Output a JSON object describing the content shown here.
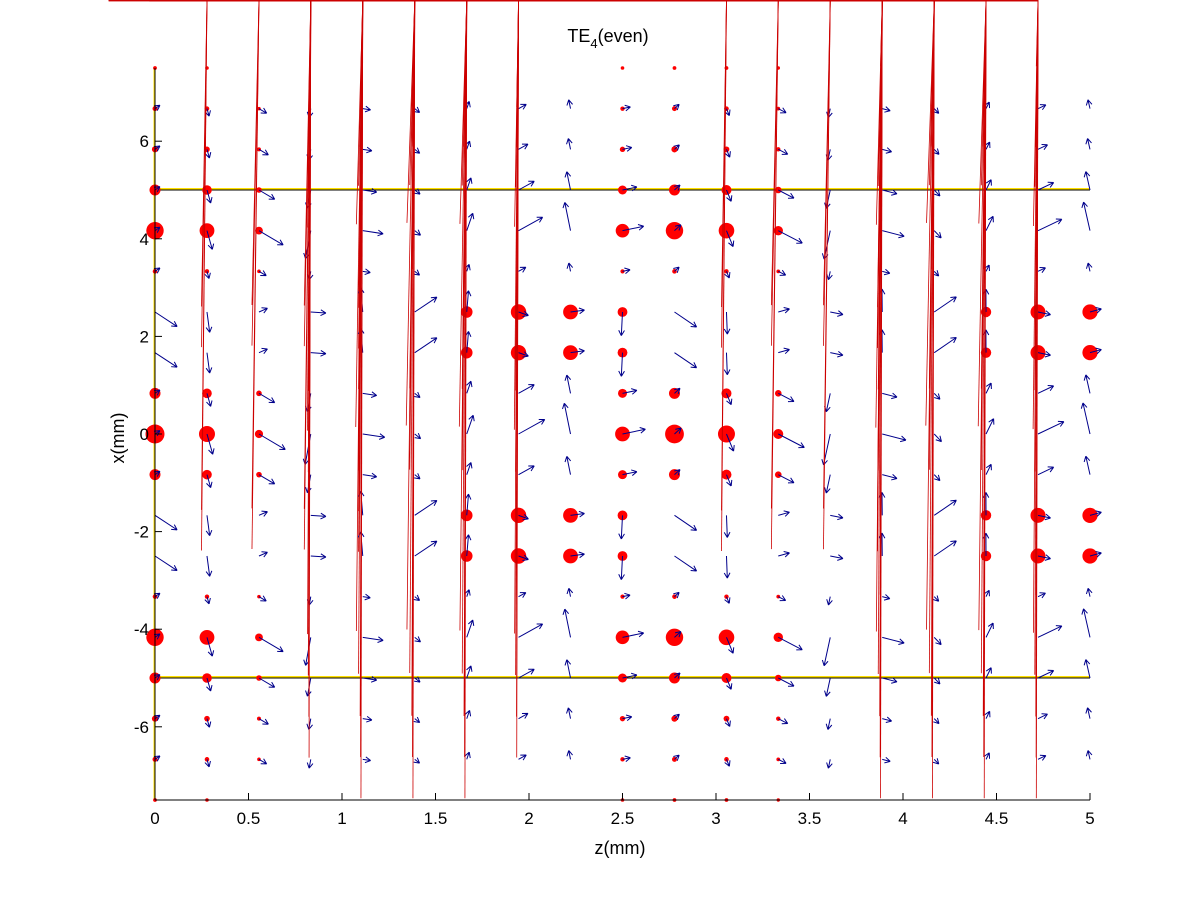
{
  "chart_data": {
    "type": "scatter",
    "title_main": "TE",
    "title_sub": "4",
    "title_tail": "(even)",
    "xlabel": "z(mm)",
    "ylabel": "x(mm)",
    "xlim": [
      0,
      5
    ],
    "ylim": [
      -7.5,
      7.5
    ],
    "xticks": [
      0,
      0.5,
      1,
      1.5,
      2,
      2.5,
      3,
      3.5,
      4,
      4.5,
      5
    ],
    "xtick_labels": [
      "0",
      "0.5",
      "1",
      "1.5",
      "2",
      "2.5",
      "3",
      "3.5",
      "4",
      "4.5",
      "5"
    ],
    "yticks": [
      -6,
      -4,
      -2,
      0,
      2,
      4,
      6
    ],
    "ytick_labels": [
      "-6",
      "-4",
      "-2",
      "0",
      "2",
      "4",
      "6"
    ],
    "boundary_lines_x": [
      5,
      -5
    ],
    "grid": false,
    "legend": "none",
    "z_samples": [
      0,
      0.278,
      0.556,
      0.833,
      1.111,
      1.389,
      1.667,
      1.944,
      2.222,
      2.5,
      2.778,
      3.056,
      3.333,
      3.611,
      3.889,
      4.167,
      4.444,
      4.722,
      5
    ],
    "x_samples": [
      7.5,
      6.667,
      5.833,
      5,
      4.167,
      3.333,
      2.5,
      1.667,
      0.833,
      0,
      -0.833,
      -1.667,
      -2.5,
      -3.333,
      -4.167,
      -5,
      -5.833,
      -6.667,
      -7.5
    ],
    "field": {
      "transverse_profile": [
        0.05,
        0.12,
        0.2,
        0.5,
        0.9,
        0.1,
        0.8,
        0.8,
        0.5,
        1.0,
        0.5,
        0.8,
        0.8,
        0.1,
        0.9,
        0.5,
        0.2,
        0.12,
        0.05
      ],
      "alt_rows": [
        6,
        7,
        11,
        12
      ],
      "propagation_constant_per_mm": 2.22,
      "alt_phase": 1.75
    },
    "colors": {
      "axes": "#000000",
      "boundary": "#ffe000",
      "dots": "#ff0000",
      "crosses": "#cc0000",
      "arrows": "#00008b"
    }
  }
}
